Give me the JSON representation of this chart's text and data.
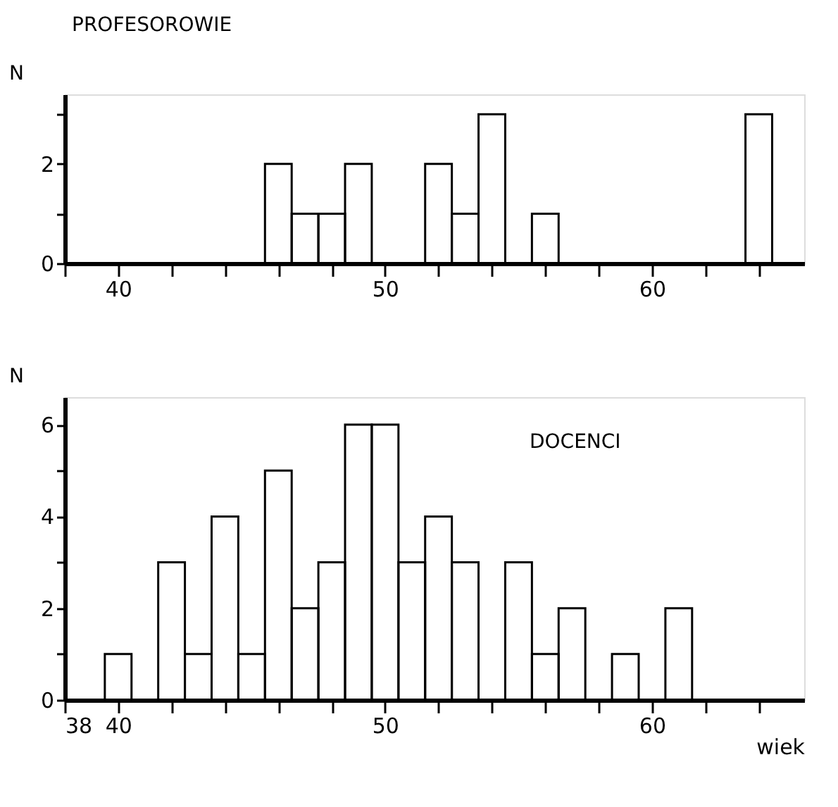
{
  "chart_data": [
    {
      "type": "histogram",
      "title": "PROFESOROWIE",
      "ylabel": "N",
      "bins": [
        45.5,
        46.5,
        47.5,
        48.5,
        49.5,
        50.5,
        51.5,
        52.5,
        53.5,
        54.5,
        55.5,
        56.5,
        57.5,
        58.5,
        59.5,
        60.5,
        61.5,
        62.5,
        63.5,
        64.5
      ],
      "values": [
        2,
        1,
        1,
        2,
        0,
        0,
        2,
        1,
        3,
        0,
        1,
        0,
        0,
        0,
        0,
        0,
        0,
        0,
        3
      ],
      "color": "#000000",
      "xlim": [
        38,
        65.7
      ],
      "xticks": [
        {
          "value": 38,
          "label": null
        },
        40,
        {
          "value": 42,
          "label": null
        },
        {
          "value": 44,
          "label": null
        },
        {
          "value": 46,
          "label": null
        },
        {
          "value": 48,
          "label": null
        },
        50,
        {
          "value": 52,
          "label": null
        },
        {
          "value": 54,
          "label": null
        },
        {
          "value": 56,
          "label": null
        },
        {
          "value": 58,
          "label": null
        },
        60,
        {
          "value": 62,
          "label": null
        },
        {
          "value": 64,
          "label": null
        }
      ],
      "ylim": [
        0,
        3.4
      ],
      "yticks": [
        0,
        {
          "value": 1,
          "label": null
        },
        2,
        {
          "value": 3,
          "label": null
        }
      ],
      "grid": false
    },
    {
      "type": "histogram",
      "title": "DOCENCI",
      "ylabel": "N",
      "xlabel": "wiek",
      "bins": [
        39.5,
        40.5,
        41.5,
        42.5,
        43.5,
        44.5,
        45.5,
        46.5,
        47.5,
        48.5,
        49.5,
        50.5,
        51.5,
        52.5,
        53.5,
        54.5,
        55.5,
        56.5,
        57.5,
        58.5,
        59.5,
        60.5,
        61.5
      ],
      "values": [
        1,
        0,
        3,
        1,
        4,
        1,
        5,
        2,
        3,
        6,
        6,
        3,
        4,
        3,
        0,
        3,
        1,
        2,
        0,
        1,
        0,
        2
      ],
      "color": "#000000",
      "xlim": [
        38,
        65.7
      ],
      "xticks": [
        38,
        40,
        {
          "value": 42,
          "label": null
        },
        {
          "value": 44,
          "label": null
        },
        {
          "value": 46,
          "label": null
        },
        {
          "value": 48,
          "label": null
        },
        50,
        {
          "value": 52,
          "label": null
        },
        {
          "value": 54,
          "label": null
        },
        {
          "value": 56,
          "label": null
        },
        {
          "value": 58,
          "label": null
        },
        60,
        {
          "value": 62,
          "label": null
        },
        {
          "value": 64,
          "label": null
        }
      ],
      "ylim": [
        0,
        6.6
      ],
      "yticks": [
        0,
        {
          "value": 1,
          "label": null
        },
        2,
        {
          "value": 3,
          "label": null
        },
        4,
        {
          "value": 5,
          "label": null
        },
        6
      ],
      "grid": false
    }
  ]
}
